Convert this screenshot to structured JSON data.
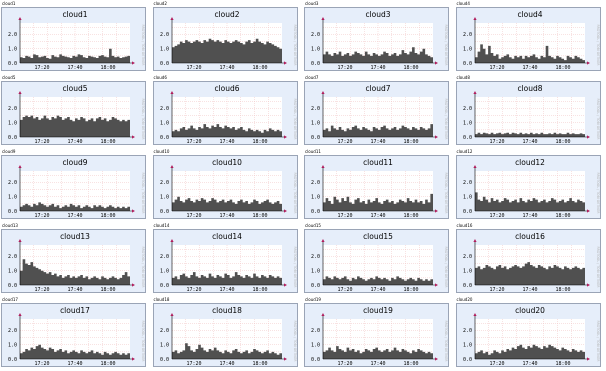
{
  "colors": {
    "panel_bg": "#e6eefa",
    "panel_border": "#9aa4b6",
    "plot_bg": "#ffffff",
    "grid": "#f2c4c4",
    "area_fill": "#505050",
    "axis": "#000000",
    "arrow": "#b01c5c",
    "side_text": "#b4b4b4"
  },
  "side_label": "RRDTOOL / TOBI OETIKER",
  "chart_data": [
    {
      "type": "area",
      "label": "cloud1",
      "title": "cloud1",
      "x_ticks": [
        "17:20",
        "17:40",
        "18:00"
      ],
      "y_ticks": [
        "0.0",
        "1.0",
        "2.0"
      ],
      "ylim": [
        0,
        2.8
      ],
      "grid": true,
      "values": [
        0.4,
        0.35,
        0.5,
        0.45,
        0.35,
        0.6,
        0.55,
        0.4,
        0.45,
        0.5,
        0.35,
        0.3,
        0.55,
        0.45,
        0.4,
        0.6,
        0.5,
        0.45,
        0.4,
        0.35,
        0.5,
        0.45,
        0.6,
        0.55,
        0.4,
        0.35,
        0.5,
        0.45,
        0.4,
        0.35,
        0.5,
        0.55,
        0.45,
        0.4,
        1.0,
        0.5,
        0.4,
        0.45,
        0.35,
        0.4,
        0.45,
        0.5
      ]
    },
    {
      "type": "area",
      "label": "cloud2",
      "title": "cloud2",
      "x_ticks": [
        "17:20",
        "17:40",
        "18:00"
      ],
      "y_ticks": [
        "0.0",
        "1.0",
        "2.0"
      ],
      "ylim": [
        0,
        2.8
      ],
      "grid": true,
      "values": [
        1.1,
        1.2,
        1.3,
        1.5,
        1.4,
        1.6,
        1.5,
        1.4,
        1.5,
        1.6,
        1.5,
        1.4,
        1.6,
        1.5,
        1.7,
        1.6,
        1.5,
        1.6,
        1.5,
        1.4,
        1.6,
        1.5,
        1.4,
        1.5,
        1.6,
        1.5,
        1.4,
        1.3,
        1.5,
        1.6,
        1.4,
        1.5,
        1.7,
        1.5,
        1.4,
        1.3,
        1.5,
        1.4,
        1.3,
        1.2,
        1.1,
        1.0
      ]
    },
    {
      "type": "area",
      "label": "cloud3",
      "title": "cloud3",
      "x_ticks": [
        "17:20",
        "17:40",
        "18:00"
      ],
      "y_ticks": [
        "0.0",
        "1.0",
        "2.0"
      ],
      "ylim": [
        0,
        2.8
      ],
      "grid": true,
      "values": [
        0.6,
        0.8,
        0.6,
        0.5,
        0.7,
        0.6,
        0.8,
        0.5,
        0.6,
        0.7,
        0.5,
        0.6,
        0.8,
        0.7,
        0.6,
        0.5,
        0.8,
        0.6,
        0.5,
        0.7,
        0.6,
        0.5,
        0.6,
        0.8,
        0.7,
        0.5,
        0.6,
        0.7,
        0.5,
        0.6,
        0.9,
        0.7,
        0.6,
        0.8,
        1.1,
        0.7,
        0.6,
        0.8,
        1.0,
        0.6,
        0.5,
        0.4
      ]
    },
    {
      "type": "area",
      "label": "cloud4",
      "title": "cloud4",
      "x_ticks": [
        "17:20",
        "17:40",
        "18:00"
      ],
      "y_ticks": [
        "0.0",
        "1.0",
        "2.0"
      ],
      "ylim": [
        0,
        2.8
      ],
      "grid": true,
      "values": [
        0.4,
        0.8,
        1.3,
        1.0,
        0.6,
        1.2,
        0.7,
        0.5,
        0.6,
        0.3,
        0.4,
        0.5,
        0.6,
        0.4,
        0.3,
        0.5,
        0.4,
        0.5,
        0.3,
        0.5,
        0.4,
        0.5,
        0.6,
        0.4,
        0.3,
        0.5,
        0.4,
        1.2,
        0.5,
        0.4,
        0.3,
        0.5,
        0.4,
        0.3,
        0.2,
        0.5,
        0.4,
        0.3,
        0.5,
        0.4,
        0.3,
        0.2
      ]
    },
    {
      "type": "area",
      "label": "cloud5",
      "title": "cloud5",
      "x_ticks": [
        "17:20",
        "17:40",
        "18:00"
      ],
      "y_ticks": [
        "0.0",
        "1.0",
        "2.0"
      ],
      "ylim": [
        0,
        2.8
      ],
      "grid": true,
      "values": [
        1.2,
        1.4,
        1.5,
        1.4,
        1.5,
        1.3,
        1.4,
        1.2,
        1.3,
        1.5,
        1.3,
        1.2,
        1.4,
        1.3,
        1.5,
        1.4,
        1.2,
        1.3,
        1.4,
        1.2,
        1.1,
        1.3,
        1.2,
        1.4,
        1.3,
        1.1,
        1.2,
        1.3,
        1.1,
        1.3,
        1.4,
        1.2,
        1.3,
        1.1,
        1.2,
        1.4,
        1.3,
        1.2,
        1.1,
        1.2,
        1.1,
        1.2
      ]
    },
    {
      "type": "area",
      "label": "cloud6",
      "title": "cloud6",
      "x_ticks": [
        "17:20",
        "17:40",
        "18:00"
      ],
      "y_ticks": [
        "0.0",
        "1.0",
        "2.0"
      ],
      "ylim": [
        0,
        2.8
      ],
      "grid": true,
      "values": [
        0.4,
        0.5,
        0.4,
        0.6,
        0.7,
        0.5,
        0.6,
        0.8,
        0.6,
        0.5,
        0.7,
        0.6,
        0.9,
        0.7,
        0.6,
        0.8,
        0.7,
        0.9,
        0.7,
        0.6,
        0.8,
        0.7,
        0.6,
        0.7,
        0.5,
        0.6,
        0.7,
        0.5,
        0.4,
        0.6,
        0.5,
        0.4,
        0.5,
        0.4,
        0.3,
        0.5,
        0.4,
        0.6,
        0.5,
        0.4,
        0.5,
        0.4
      ]
    },
    {
      "type": "area",
      "label": "cloud7",
      "title": "cloud7",
      "x_ticks": [
        "17:20",
        "17:40",
        "18:00"
      ],
      "y_ticks": [
        "0.0",
        "1.0",
        "2.0"
      ],
      "ylim": [
        0,
        2.8
      ],
      "grid": true,
      "values": [
        0.5,
        0.6,
        0.4,
        0.8,
        0.6,
        0.5,
        0.7,
        0.5,
        0.4,
        0.6,
        0.5,
        0.7,
        0.8,
        0.6,
        0.5,
        0.7,
        0.6,
        0.5,
        0.4,
        0.7,
        0.6,
        0.5,
        0.7,
        0.8,
        0.6,
        0.5,
        0.6,
        0.7,
        0.5,
        0.6,
        0.8,
        0.7,
        0.6,
        0.5,
        0.7,
        0.6,
        0.5,
        0.7,
        0.6,
        0.5,
        0.6,
        0.9
      ]
    },
    {
      "type": "area",
      "label": "cloud8",
      "title": "cloud8",
      "x_ticks": [
        "17:20",
        "17:40",
        "18:00"
      ],
      "y_ticks": [
        "0.0",
        "1.0",
        "2.0"
      ],
      "ylim": [
        0,
        2.8
      ],
      "grid": true,
      "values": [
        0.2,
        0.3,
        0.2,
        0.3,
        0.25,
        0.2,
        0.3,
        0.2,
        0.25,
        0.3,
        0.2,
        0.25,
        0.3,
        0.2,
        0.3,
        0.25,
        0.2,
        0.3,
        0.2,
        0.25,
        0.2,
        0.3,
        0.2,
        0.25,
        0.2,
        0.3,
        0.2,
        0.2,
        0.25,
        0.2,
        0.3,
        0.2,
        0.25,
        0.2,
        0.2,
        0.3,
        0.2,
        0.25,
        0.2,
        0.2,
        0.25,
        0.2
      ]
    },
    {
      "type": "area",
      "label": "cloud9",
      "title": "cloud9",
      "x_ticks": [
        "17:20",
        "17:40",
        "18:00"
      ],
      "y_ticks": [
        "0.0",
        "1.0",
        "2.0"
      ],
      "ylim": [
        0,
        2.8
      ],
      "grid": true,
      "values": [
        0.3,
        0.4,
        0.5,
        0.4,
        0.3,
        0.5,
        0.4,
        0.6,
        0.5,
        0.4,
        0.3,
        0.4,
        0.5,
        0.3,
        0.4,
        0.2,
        0.3,
        0.4,
        0.3,
        0.5,
        0.4,
        0.3,
        0.4,
        0.2,
        0.3,
        0.4,
        0.3,
        0.2,
        0.4,
        0.3,
        0.4,
        0.3,
        0.2,
        0.3,
        0.4,
        0.3,
        0.2,
        0.3,
        0.2,
        0.3,
        0.2,
        0.3
      ]
    },
    {
      "type": "area",
      "label": "cloud10",
      "title": "cloud10",
      "x_ticks": [
        "17:20",
        "17:40",
        "18:00"
      ],
      "y_ticks": [
        "0.0",
        "1.0",
        "2.0"
      ],
      "ylim": [
        0,
        2.8
      ],
      "grid": true,
      "values": [
        0.6,
        0.8,
        1.0,
        0.7,
        0.6,
        0.8,
        0.9,
        0.7,
        0.6,
        0.8,
        0.7,
        0.9,
        0.8,
        0.6,
        0.7,
        0.9,
        0.8,
        0.6,
        0.7,
        0.8,
        0.6,
        0.7,
        0.8,
        0.6,
        0.5,
        0.7,
        0.8,
        0.6,
        0.7,
        0.5,
        0.6,
        0.8,
        0.7,
        0.5,
        0.6,
        0.7,
        0.8,
        0.6,
        0.5,
        0.6,
        0.7,
        0.5
      ]
    },
    {
      "type": "area",
      "label": "cloud11",
      "title": "cloud11",
      "x_ticks": [
        "17:20",
        "17:40",
        "18:00"
      ],
      "y_ticks": [
        "0.0",
        "1.0",
        "2.0"
      ],
      "ylim": [
        0,
        2.8
      ],
      "grid": true,
      "values": [
        0.6,
        0.9,
        0.7,
        0.5,
        1.0,
        0.8,
        0.6,
        0.9,
        0.7,
        1.0,
        0.6,
        0.5,
        0.8,
        0.9,
        0.6,
        0.7,
        0.5,
        0.8,
        0.6,
        0.7,
        0.9,
        0.6,
        0.5,
        0.7,
        0.8,
        0.6,
        0.7,
        0.5,
        0.6,
        0.8,
        0.7,
        0.6,
        0.9,
        0.7,
        0.6,
        0.8,
        0.6,
        0.7,
        0.5,
        0.8,
        0.6,
        1.2
      ]
    },
    {
      "type": "area",
      "label": "cloud12",
      "title": "cloud12",
      "x_ticks": [
        "17:20",
        "17:40",
        "18:00"
      ],
      "y_ticks": [
        "0.0",
        "1.0",
        "2.0"
      ],
      "ylim": [
        0,
        2.8
      ],
      "grid": true,
      "values": [
        1.3,
        0.8,
        0.7,
        1.0,
        0.8,
        0.6,
        0.9,
        0.7,
        0.8,
        0.6,
        0.7,
        0.9,
        0.8,
        0.6,
        0.7,
        0.8,
        0.6,
        0.9,
        0.7,
        0.6,
        0.8,
        0.7,
        0.9,
        0.8,
        0.6,
        0.7,
        0.8,
        0.6,
        0.7,
        0.9,
        0.8,
        0.6,
        0.7,
        0.8,
        0.6,
        0.7,
        0.9,
        0.7,
        0.6,
        0.8,
        0.7,
        0.6
      ]
    },
    {
      "type": "area",
      "label": "cloud13",
      "title": "cloud13",
      "x_ticks": [
        "17:20",
        "17:40",
        "18:00"
      ],
      "y_ticks": [
        "0.0",
        "1.0",
        "2.0"
      ],
      "ylim": [
        0,
        2.8
      ],
      "grid": true,
      "values": [
        1.0,
        1.8,
        1.5,
        1.4,
        1.6,
        1.3,
        1.2,
        1.1,
        1.0,
        0.9,
        0.8,
        0.9,
        0.7,
        0.8,
        0.6,
        0.7,
        0.5,
        0.6,
        0.7,
        0.5,
        0.6,
        0.5,
        0.6,
        0.7,
        0.5,
        0.6,
        0.4,
        0.5,
        0.6,
        0.5,
        0.4,
        0.6,
        0.5,
        0.4,
        0.5,
        0.6,
        0.5,
        0.4,
        0.5,
        0.7,
        0.9,
        0.6
      ]
    },
    {
      "type": "area",
      "label": "cloud14",
      "title": "cloud14",
      "x_ticks": [
        "17:20",
        "17:40",
        "18:00"
      ],
      "y_ticks": [
        "0.0",
        "1.0",
        "2.0"
      ],
      "ylim": [
        0,
        2.8
      ],
      "grid": true,
      "values": [
        0.5,
        0.6,
        0.4,
        0.7,
        0.8,
        0.6,
        0.5,
        0.7,
        0.9,
        0.6,
        0.5,
        0.7,
        0.6,
        0.5,
        0.8,
        0.6,
        0.5,
        0.7,
        0.6,
        0.5,
        0.8,
        0.7,
        0.5,
        0.6,
        0.9,
        0.7,
        0.6,
        0.5,
        0.7,
        0.6,
        0.5,
        0.8,
        0.6,
        0.5,
        0.7,
        0.6,
        0.5,
        0.7,
        0.6,
        0.5,
        0.6,
        0.5
      ]
    },
    {
      "type": "area",
      "label": "cloud15",
      "title": "cloud15",
      "x_ticks": [
        "17:20",
        "17:40",
        "18:00"
      ],
      "y_ticks": [
        "0.0",
        "1.0",
        "2.0"
      ],
      "ylim": [
        0,
        2.8
      ],
      "grid": true,
      "values": [
        0.4,
        0.6,
        0.5,
        0.4,
        0.6,
        0.5,
        0.4,
        0.5,
        0.6,
        0.4,
        0.3,
        0.5,
        0.4,
        0.6,
        0.5,
        0.4,
        0.3,
        0.4,
        0.5,
        0.4,
        0.6,
        0.5,
        0.4,
        0.5,
        0.4,
        0.3,
        0.5,
        0.4,
        0.6,
        0.5,
        0.4,
        0.3,
        0.4,
        0.5,
        0.4,
        0.3,
        0.5,
        0.4,
        0.3,
        0.4,
        0.3,
        0.4
      ]
    },
    {
      "type": "area",
      "label": "cloud16",
      "title": "cloud16",
      "x_ticks": [
        "17:20",
        "17:40",
        "18:00"
      ],
      "y_ticks": [
        "0.0",
        "1.0",
        "2.0"
      ],
      "ylim": [
        0,
        2.8
      ],
      "grid": true,
      "values": [
        1.2,
        1.3,
        1.1,
        1.2,
        1.4,
        1.3,
        1.2,
        1.1,
        1.3,
        1.4,
        1.2,
        1.3,
        1.1,
        1.2,
        1.3,
        1.4,
        1.3,
        1.2,
        1.3,
        1.5,
        1.6,
        1.4,
        1.3,
        1.2,
        1.4,
        1.3,
        1.2,
        1.1,
        1.3,
        1.2,
        1.4,
        1.3,
        1.2,
        1.1,
        1.3,
        1.2,
        1.1,
        1.2,
        1.3,
        1.2,
        1.1,
        1.2
      ]
    },
    {
      "type": "area",
      "label": "cloud17",
      "title": "cloud17",
      "x_ticks": [
        "17:20",
        "17:40",
        "18:00"
      ],
      "y_ticks": [
        "0.0",
        "1.0",
        "2.0"
      ],
      "ylim": [
        0,
        2.8
      ],
      "grid": true,
      "values": [
        0.4,
        0.5,
        0.7,
        0.6,
        0.8,
        0.7,
        0.9,
        1.0,
        0.8,
        0.7,
        0.6,
        0.8,
        0.7,
        0.5,
        0.6,
        0.7,
        0.5,
        0.6,
        0.4,
        0.5,
        0.6,
        0.5,
        0.4,
        0.6,
        0.5,
        0.4,
        0.5,
        0.6,
        0.4,
        0.5,
        0.4,
        0.3,
        0.5,
        0.4,
        0.3,
        0.4,
        0.5,
        0.4,
        0.3,
        0.4,
        0.3,
        0.4
      ]
    },
    {
      "type": "area",
      "label": "cloud18",
      "title": "cloud18",
      "x_ticks": [
        "17:20",
        "17:40",
        "18:00"
      ],
      "y_ticks": [
        "0.0",
        "1.0",
        "2.0"
      ],
      "ylim": [
        0,
        2.8
      ],
      "grid": true,
      "values": [
        0.5,
        0.6,
        0.4,
        0.5,
        0.6,
        1.1,
        0.9,
        0.6,
        0.5,
        0.7,
        1.0,
        0.8,
        0.6,
        0.5,
        0.7,
        0.6,
        0.8,
        0.6,
        0.5,
        0.4,
        0.6,
        0.5,
        0.4,
        0.6,
        0.7,
        0.5,
        0.4,
        0.5,
        0.6,
        0.4,
        0.5,
        0.7,
        0.6,
        0.5,
        0.4,
        0.5,
        0.6,
        0.4,
        0.5,
        0.4,
        0.3,
        0.4
      ]
    },
    {
      "type": "area",
      "label": "cloud19",
      "title": "cloud19",
      "x_ticks": [
        "17:20",
        "17:40",
        "18:00"
      ],
      "y_ticks": [
        "0.0",
        "1.0",
        "2.0"
      ],
      "ylim": [
        0,
        2.8
      ],
      "grid": true,
      "values": [
        0.5,
        0.6,
        0.8,
        0.6,
        0.5,
        0.9,
        0.7,
        0.6,
        0.5,
        0.8,
        0.6,
        0.7,
        0.5,
        0.6,
        0.4,
        0.5,
        0.7,
        0.6,
        0.5,
        0.7,
        0.8,
        0.6,
        0.5,
        0.6,
        0.7,
        0.5,
        0.6,
        0.8,
        0.6,
        0.5,
        0.7,
        0.6,
        0.5,
        0.4,
        0.6,
        0.5,
        0.7,
        0.6,
        0.5,
        0.4,
        0.5,
        0.4
      ]
    },
    {
      "type": "area",
      "label": "cloud20",
      "title": "cloud20",
      "x_ticks": [
        "17:20",
        "17:40",
        "18:00"
      ],
      "y_ticks": [
        "0.0",
        "1.0",
        "2.0"
      ],
      "ylim": [
        0,
        2.8
      ],
      "grid": true,
      "values": [
        0.4,
        0.5,
        0.6,
        0.4,
        0.5,
        0.3,
        0.4,
        0.6,
        0.5,
        0.4,
        0.6,
        0.5,
        0.7,
        0.6,
        0.8,
        0.7,
        0.9,
        1.0,
        0.8,
        0.7,
        0.9,
        0.8,
        1.0,
        0.9,
        0.8,
        0.7,
        0.9,
        0.8,
        1.0,
        0.9,
        0.8,
        0.7,
        0.6,
        0.8,
        0.7,
        0.6,
        0.5,
        0.7,
        0.6,
        0.5,
        0.6,
        0.5
      ]
    }
  ]
}
